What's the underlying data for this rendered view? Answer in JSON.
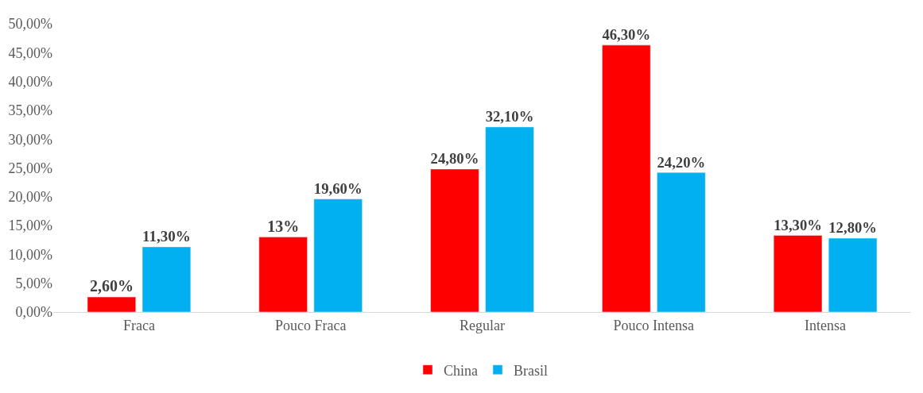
{
  "chart_data": {
    "type": "bar",
    "categories": [
      "Fraca",
      "Pouco Fraca",
      "Regular",
      "Pouco Intensa",
      "Intensa"
    ],
    "series": [
      {
        "name": "China",
        "color": "#ff0000",
        "values": [
          2.6,
          13,
          24.8,
          46.3,
          13.3
        ],
        "value_labels": [
          "2,60%",
          "13%",
          "24,80%",
          "46,30%",
          "13,30%"
        ]
      },
      {
        "name": "Brasil",
        "color": "#00b0f0",
        "values": [
          11.3,
          19.6,
          32.1,
          24.2,
          12.8
        ],
        "value_labels": [
          "11,30%",
          "19,60%",
          "32,10%",
          "24,20%",
          "12,80%"
        ]
      }
    ],
    "ylim": [
      0,
      50
    ],
    "yticks": [
      {
        "value": 0,
        "label": "0,00%"
      },
      {
        "value": 5,
        "label": "5,00%"
      },
      {
        "value": 10,
        "label": "10,00%"
      },
      {
        "value": 15,
        "label": "15,00%"
      },
      {
        "value": 20,
        "label": "20,00%"
      },
      {
        "value": 25,
        "label": "25,00%"
      },
      {
        "value": 30,
        "label": "30,00%"
      },
      {
        "value": 35,
        "label": "35,00%"
      },
      {
        "value": 40,
        "label": "40,00%"
      },
      {
        "value": 45,
        "label": "45,00%"
      },
      {
        "value": 50,
        "label": "50,00%"
      }
    ],
    "grid": false,
    "legend": "bottom"
  }
}
